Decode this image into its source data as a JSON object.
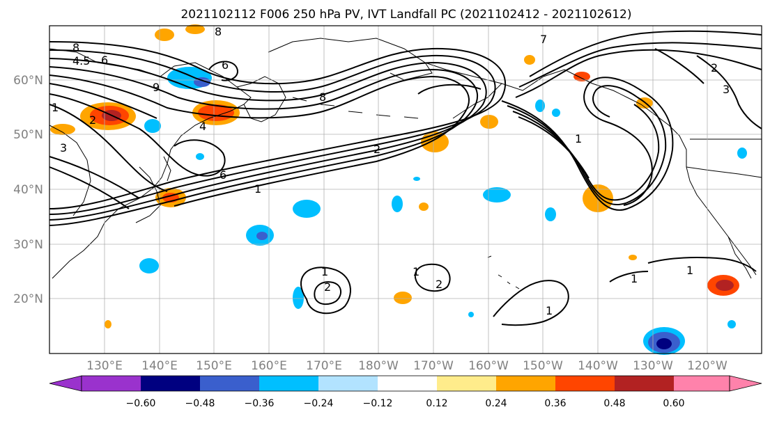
{
  "title": "2021102112 F006 250 hPa PV, IVT Landfall PC (2021102412 - 2021102612)",
  "lat_labels": [
    "60°N",
    "50°N",
    "40°N",
    "30°N",
    "20°N"
  ],
  "lon_labels": [
    "130°E",
    "140°E",
    "150°E",
    "160°E",
    "170°E",
    "180°W",
    "170°W",
    "160°W",
    "150°W",
    "140°W",
    "130°W",
    "120°W"
  ],
  "colorbar": {
    "ticks": [
      "−0.60",
      "−0.48",
      "−0.36",
      "−0.24",
      "−0.12",
      "0.12",
      "0.24",
      "0.36",
      "0.48",
      "0.60"
    ],
    "colors": [
      "#9a32cd",
      "#000080",
      "#3a5fcd",
      "#00bfff",
      "#b2e3ff",
      "#ffffff",
      "#ffec8b",
      "#ffa500",
      "#ff4500",
      "#b22222",
      "#ff82ab"
    ]
  },
  "contour_labels": [
    "8",
    "4.5",
    "6",
    "8",
    "6",
    "8",
    "9",
    "1",
    "2",
    "3",
    "4",
    "6",
    "2",
    "1",
    "1",
    "2",
    "1",
    "2",
    "1",
    "1",
    "1",
    "7",
    "2",
    "3",
    "1"
  ],
  "colors": {
    "tick_label": "#808080",
    "contour": "#000000",
    "grid": "#b0b0b0"
  }
}
